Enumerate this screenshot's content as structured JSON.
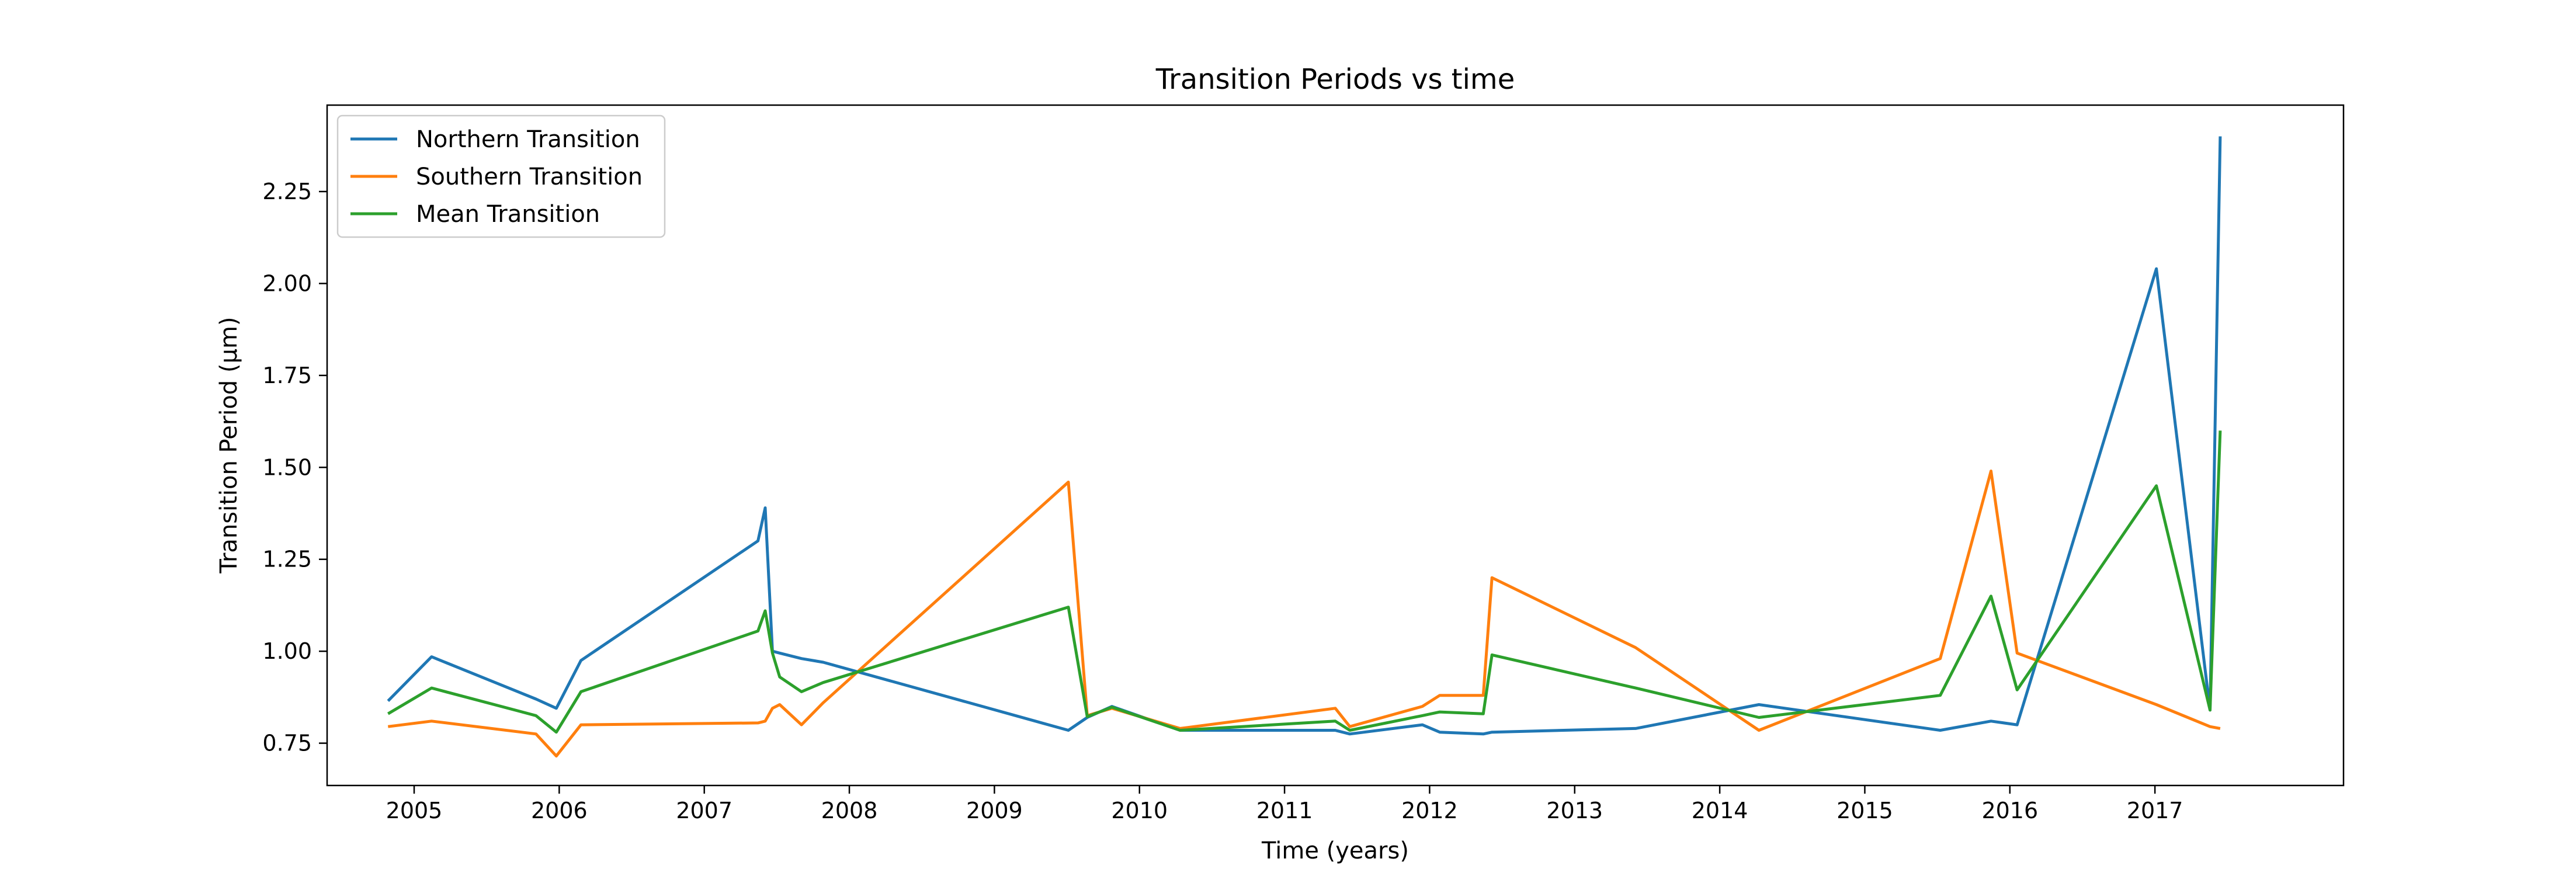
{
  "chart_data": {
    "type": "line",
    "title": "Transition Periods vs time",
    "xlabel": "Time (years)",
    "ylabel": "Transition Period (µm)",
    "xlim": [
      2004.4,
      2018.3
    ],
    "ylim": [
      0.635,
      2.485
    ],
    "x_ticks": [
      2005,
      2006,
      2007,
      2008,
      2009,
      2010,
      2011,
      2012,
      2013,
      2014,
      2015,
      2016,
      2017
    ],
    "x_tick_labels": [
      "2005",
      "2006",
      "2007",
      "2008",
      "2009",
      "2010",
      "2011",
      "2012",
      "2013",
      "2014",
      "2015",
      "2016",
      "2017"
    ],
    "y_ticks": [
      0.75,
      1.0,
      1.25,
      1.5,
      1.75,
      2.0,
      2.25
    ],
    "y_tick_labels": [
      "0.75",
      "1.00",
      "1.25",
      "1.50",
      "1.75",
      "2.00",
      "2.25"
    ],
    "grid": false,
    "legend": "top-left",
    "x": [
      2004.82,
      2005.12,
      2005.84,
      2005.98,
      2006.15,
      2007.37,
      2007.42,
      2007.47,
      2007.52,
      2007.67,
      2007.82,
      2009.51,
      2009.64,
      2009.81,
      2010.28,
      2011.35,
      2011.45,
      2011.95,
      2012.07,
      2012.37,
      2012.43,
      2013.42,
      2014.27,
      2015.52,
      2015.87,
      2016.05,
      2017.01,
      2017.38,
      2017.45
    ],
    "series": [
      {
        "name": "Northern Transition",
        "color": "#1f77b4",
        "values": [
          0.865,
          0.985,
          0.87,
          0.845,
          0.975,
          1.3,
          1.39,
          1.0,
          0.995,
          0.98,
          0.97,
          0.785,
          0.82,
          0.85,
          0.785,
          0.785,
          0.775,
          0.8,
          0.78,
          0.775,
          0.78,
          0.79,
          0.855,
          0.785,
          0.81,
          0.8,
          2.04,
          0.84,
          2.4
        ]
      },
      {
        "name": "Southern Transition",
        "color": "#ff7f0e",
        "values": [
          0.795,
          0.81,
          0.775,
          0.715,
          0.8,
          0.805,
          0.81,
          0.845,
          0.855,
          0.8,
          0.86,
          1.46,
          0.825,
          0.845,
          0.79,
          0.845,
          0.795,
          0.85,
          0.88,
          0.88,
          1.2,
          1.01,
          0.785,
          0.98,
          1.49,
          0.995,
          0.855,
          0.795,
          0.79
        ]
      },
      {
        "name": "Mean Transition",
        "color": "#2ca02c",
        "values": [
          0.83,
          0.9,
          0.825,
          0.78,
          0.89,
          1.055,
          1.11,
          0.995,
          0.93,
          0.89,
          0.915,
          1.12,
          0.822,
          0.848,
          0.785,
          0.81,
          0.785,
          0.825,
          0.835,
          0.83,
          0.99,
          0.9,
          0.82,
          0.88,
          1.15,
          0.895,
          1.45,
          0.84,
          1.6
        ]
      }
    ]
  }
}
